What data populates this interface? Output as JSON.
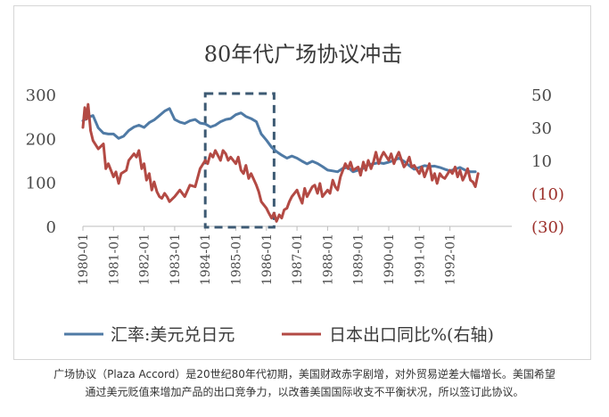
{
  "chart_data": {
    "type": "line",
    "title": "80年代广场协议冲击",
    "x_tick_labels": [
      "1980-01",
      "1981-01",
      "1982-01",
      "1983-01",
      "1984-01",
      "1985-01",
      "1986-01",
      "1987-01",
      "1988-01",
      "1989-01",
      "1990-01",
      "1991-01",
      "1992-01"
    ],
    "y_left": {
      "ticks": [
        "300",
        "200",
        "100",
        "0"
      ],
      "range": [
        0,
        300
      ]
    },
    "y_right": {
      "ticks": [
        "50",
        "30",
        "10",
        "(10)",
        "(30)"
      ],
      "range": [
        -30,
        50
      ]
    },
    "highlight_window": {
      "start": "1984-01",
      "end": "1986-04"
    },
    "series": [
      {
        "name": "汇率:美元兑日元",
        "axis": "left",
        "color": "#4f7aa5",
        "points": [
          [
            1980.0,
            240
          ],
          [
            1980.17,
            248
          ],
          [
            1980.33,
            252
          ],
          [
            1980.5,
            224
          ],
          [
            1980.67,
            212
          ],
          [
            1980.83,
            210
          ],
          [
            1981.0,
            210
          ],
          [
            1981.17,
            200
          ],
          [
            1981.33,
            205
          ],
          [
            1981.5,
            218
          ],
          [
            1981.67,
            226
          ],
          [
            1981.83,
            230
          ],
          [
            1982.0,
            225
          ],
          [
            1982.17,
            236
          ],
          [
            1982.33,
            242
          ],
          [
            1982.5,
            252
          ],
          [
            1982.67,
            262
          ],
          [
            1982.83,
            268
          ],
          [
            1983.0,
            243
          ],
          [
            1983.17,
            237
          ],
          [
            1983.33,
            234
          ],
          [
            1983.5,
            240
          ],
          [
            1983.67,
            243
          ],
          [
            1983.83,
            235
          ],
          [
            1984.0,
            233
          ],
          [
            1984.17,
            226
          ],
          [
            1984.33,
            230
          ],
          [
            1984.5,
            238
          ],
          [
            1984.67,
            243
          ],
          [
            1984.83,
            245
          ],
          [
            1985.0,
            254
          ],
          [
            1985.17,
            258
          ],
          [
            1985.33,
            250
          ],
          [
            1985.5,
            245
          ],
          [
            1985.67,
            238
          ],
          [
            1985.83,
            210
          ],
          [
            1986.0,
            196
          ],
          [
            1986.17,
            180
          ],
          [
            1986.33,
            170
          ],
          [
            1986.5,
            162
          ],
          [
            1986.67,
            155
          ],
          [
            1986.83,
            160
          ],
          [
            1987.0,
            155
          ],
          [
            1987.17,
            148
          ],
          [
            1987.33,
            142
          ],
          [
            1987.5,
            148
          ],
          [
            1987.67,
            143
          ],
          [
            1987.83,
            136
          ],
          [
            1988.0,
            128
          ],
          [
            1988.17,
            126
          ],
          [
            1988.33,
            124
          ],
          [
            1988.5,
            132
          ],
          [
            1988.67,
            134
          ],
          [
            1988.83,
            124
          ],
          [
            1989.0,
            128
          ],
          [
            1989.17,
            132
          ],
          [
            1989.33,
            140
          ],
          [
            1989.5,
            142
          ],
          [
            1989.67,
            145
          ],
          [
            1989.83,
            143
          ],
          [
            1990.0,
            146
          ],
          [
            1990.17,
            150
          ],
          [
            1990.33,
            155
          ],
          [
            1990.5,
            148
          ],
          [
            1990.67,
            138
          ],
          [
            1990.83,
            130
          ],
          [
            1991.0,
            134
          ],
          [
            1991.17,
            138
          ],
          [
            1991.33,
            136
          ],
          [
            1991.5,
            137
          ],
          [
            1991.67,
            134
          ],
          [
            1991.83,
            130
          ],
          [
            1992.0,
            126
          ],
          [
            1992.17,
            130
          ],
          [
            1992.33,
            134
          ],
          [
            1992.5,
            128
          ],
          [
            1992.67,
            124
          ],
          [
            1992.83,
            124
          ]
        ]
      },
      {
        "name": "日本出口同比%(右轴)",
        "axis": "right",
        "color": "#b34a44",
        "points": [
          [
            1980.0,
            30
          ],
          [
            1980.06,
            42
          ],
          [
            1980.12,
            35
          ],
          [
            1980.17,
            44
          ],
          [
            1980.25,
            28
          ],
          [
            1980.33,
            22
          ],
          [
            1980.5,
            17
          ],
          [
            1980.67,
            20
          ],
          [
            1980.75,
            5
          ],
          [
            1980.83,
            8
          ],
          [
            1981.0,
            0
          ],
          [
            1981.08,
            3
          ],
          [
            1981.17,
            -4
          ],
          [
            1981.25,
            2
          ],
          [
            1981.42,
            4
          ],
          [
            1981.5,
            10
          ],
          [
            1981.67,
            14
          ],
          [
            1981.75,
            12
          ],
          [
            1981.83,
            16
          ],
          [
            1981.92,
            5
          ],
          [
            1982.0,
            8
          ],
          [
            1982.08,
            -2
          ],
          [
            1982.17,
            2
          ],
          [
            1982.25,
            -8
          ],
          [
            1982.33,
            -3
          ],
          [
            1982.42,
            -9
          ],
          [
            1982.5,
            -12
          ],
          [
            1982.58,
            -13
          ],
          [
            1982.67,
            -10
          ],
          [
            1982.75,
            -12
          ],
          [
            1982.83,
            -15
          ],
          [
            1983.0,
            -12
          ],
          [
            1983.17,
            -8
          ],
          [
            1983.33,
            -12
          ],
          [
            1983.5,
            -5
          ],
          [
            1983.67,
            -6
          ],
          [
            1983.83,
            5
          ],
          [
            1984.0,
            10
          ],
          [
            1984.08,
            8
          ],
          [
            1984.17,
            14
          ],
          [
            1984.25,
            12
          ],
          [
            1984.33,
            16
          ],
          [
            1984.5,
            10
          ],
          [
            1984.58,
            16
          ],
          [
            1984.67,
            14
          ],
          [
            1984.75,
            10
          ],
          [
            1984.83,
            12
          ],
          [
            1985.0,
            8
          ],
          [
            1985.08,
            12
          ],
          [
            1985.17,
            4
          ],
          [
            1985.25,
            2
          ],
          [
            1985.33,
            7
          ],
          [
            1985.42,
            -1
          ],
          [
            1985.5,
            2
          ],
          [
            1985.67,
            -5
          ],
          [
            1985.75,
            -9
          ],
          [
            1985.83,
            -15
          ],
          [
            1986.0,
            -19
          ],
          [
            1986.08,
            -22
          ],
          [
            1986.17,
            -25
          ],
          [
            1986.25,
            -22
          ],
          [
            1986.33,
            -27
          ],
          [
            1986.42,
            -23
          ],
          [
            1986.5,
            -25
          ],
          [
            1986.58,
            -20
          ],
          [
            1986.67,
            -19
          ],
          [
            1986.75,
            -15
          ],
          [
            1986.83,
            -12
          ],
          [
            1987.0,
            -8
          ],
          [
            1987.08,
            -12
          ],
          [
            1987.17,
            -16
          ],
          [
            1987.25,
            -7
          ],
          [
            1987.33,
            -12
          ],
          [
            1987.5,
            -6
          ],
          [
            1987.58,
            -5
          ],
          [
            1987.67,
            -10
          ],
          [
            1987.75,
            -4
          ],
          [
            1987.83,
            -12
          ],
          [
            1988.0,
            -8
          ],
          [
            1988.08,
            -10
          ],
          [
            1988.17,
            -2
          ],
          [
            1988.25,
            -6
          ],
          [
            1988.33,
            -8
          ],
          [
            1988.42,
            0
          ],
          [
            1988.5,
            4
          ],
          [
            1988.58,
            8
          ],
          [
            1988.67,
            5
          ],
          [
            1988.75,
            9
          ],
          [
            1988.83,
            4
          ],
          [
            1989.0,
            6
          ],
          [
            1989.08,
            1
          ],
          [
            1989.17,
            9
          ],
          [
            1989.25,
            4
          ],
          [
            1989.33,
            10
          ],
          [
            1989.42,
            5
          ],
          [
            1989.5,
            9
          ],
          [
            1989.58,
            15
          ],
          [
            1989.67,
            8
          ],
          [
            1989.75,
            12
          ],
          [
            1989.83,
            15
          ],
          [
            1990.0,
            10
          ],
          [
            1990.08,
            14
          ],
          [
            1990.17,
            8
          ],
          [
            1990.25,
            12
          ],
          [
            1990.33,
            15
          ],
          [
            1990.42,
            10
          ],
          [
            1990.5,
            6
          ],
          [
            1990.58,
            8
          ],
          [
            1990.67,
            12
          ],
          [
            1990.75,
            6
          ],
          [
            1990.83,
            7
          ],
          [
            1991.0,
            2
          ],
          [
            1991.08,
            6
          ],
          [
            1991.17,
            0
          ],
          [
            1991.25,
            4
          ],
          [
            1991.33,
            8
          ],
          [
            1991.42,
            -2
          ],
          [
            1991.5,
            2
          ],
          [
            1991.58,
            -4
          ],
          [
            1991.67,
            2
          ],
          [
            1991.75,
            0
          ],
          [
            1991.83,
            -1
          ],
          [
            1992.0,
            4
          ],
          [
            1992.08,
            2
          ],
          [
            1992.17,
            6
          ],
          [
            1992.25,
            0
          ],
          [
            1992.33,
            4
          ],
          [
            1992.42,
            -2
          ],
          [
            1992.5,
            1
          ],
          [
            1992.58,
            5
          ],
          [
            1992.67,
            -2
          ],
          [
            1992.75,
            -3
          ],
          [
            1992.83,
            -6
          ],
          [
            1992.92,
            2
          ]
        ]
      }
    ],
    "legend_position": "bottom",
    "grid": false
  },
  "caption": {
    "line1": "广场协议（Plaza Accord）是20世纪80年代初期，美国财政赤字剧增，对外贸易逆差大幅增长。美国希望",
    "line2": "通过美元贬值来增加产品的出口竞争力，以改善美国国际收支不平衡状况，所以签订此协议。"
  }
}
